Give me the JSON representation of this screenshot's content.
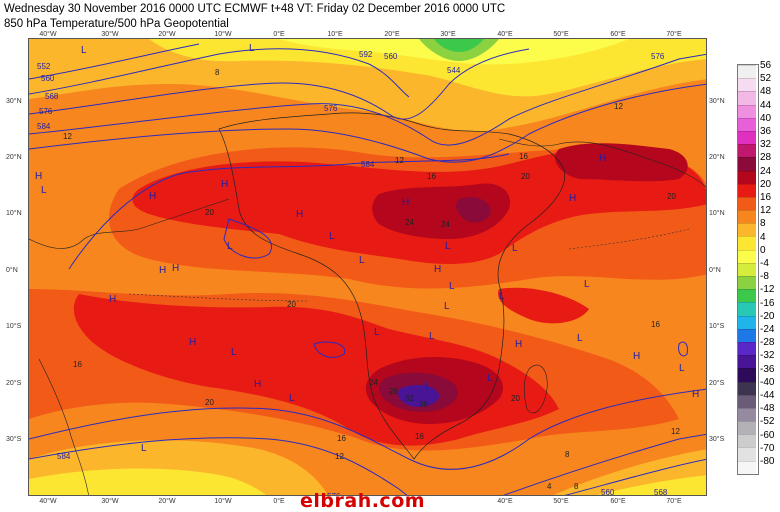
{
  "header": {
    "line1": "Wednesday 30 November 2016 0000 UTC  ECMWF  t+48  VT: Friday 02 December 2016 0000 UTC",
    "line2": "850 hPa Temperature/500 hPa Geopotential"
  },
  "axes": {
    "lon_labels": [
      "40°W",
      "30°W",
      "20°W",
      "10°W",
      "0°E",
      "10°E",
      "20°E",
      "30°E",
      "40°E",
      "50°E",
      "60°E",
      "70°E"
    ],
    "lat_labels": [
      "30°N",
      "20°N",
      "10°N",
      "0°N",
      "10°S",
      "20°S",
      "30°S"
    ]
  },
  "legend": {
    "items": [
      {
        "label": "56",
        "color": "#f0f0f0"
      },
      {
        "label": "52",
        "color": "#f6dcf0"
      },
      {
        "label": "48",
        "color": "#f2b8e6"
      },
      {
        "label": "44",
        "color": "#ee8fe0"
      },
      {
        "label": "40",
        "color": "#e860d8"
      },
      {
        "label": "36",
        "color": "#e030c0"
      },
      {
        "label": "32",
        "color": "#c0186e"
      },
      {
        "label": "28",
        "color": "#8a0a3a"
      },
      {
        "label": "24",
        "color": "#b4061c"
      },
      {
        "label": "20",
        "color": "#e81a14"
      },
      {
        "label": "16",
        "color": "#f25a18"
      },
      {
        "label": "12",
        "color": "#f8861e"
      },
      {
        "label": "8",
        "color": "#fcb62c"
      },
      {
        "label": "4",
        "color": "#fde632"
      },
      {
        "label": "0",
        "color": "#fcfc4a"
      },
      {
        "label": "-4",
        "color": "#d6ec3c"
      },
      {
        "label": "-8",
        "color": "#8cd240"
      },
      {
        "label": "-12",
        "color": "#3cc84a"
      },
      {
        "label": "-16",
        "color": "#28c8b4"
      },
      {
        "label": "-20",
        "color": "#20b4e8"
      },
      {
        "label": "-24",
        "color": "#1e78e6"
      },
      {
        "label": "-28",
        "color": "#5a28c8"
      },
      {
        "label": "-32",
        "color": "#4a1496"
      },
      {
        "label": "-36",
        "color": "#300a5a"
      },
      {
        "label": "-40",
        "color": "#3c3450"
      },
      {
        "label": "-44",
        "color": "#6a5c78"
      },
      {
        "label": "-48",
        "color": "#968aa0"
      },
      {
        "label": "-52",
        "color": "#b4b0b8"
      },
      {
        "label": "-60",
        "color": "#cccccc"
      },
      {
        "label": "-70",
        "color": "#e2e2e2"
      },
      {
        "label": "-80",
        "color": "#f6f6f6"
      }
    ]
  },
  "map": {
    "pressure_labels": [
      "552",
      "560",
      "568",
      "576",
      "584",
      "592",
      "544",
      "560",
      "576",
      "584",
      "584",
      "576",
      "568",
      "560",
      "576"
    ],
    "temp_labels": [
      "8",
      "12",
      "12",
      "16",
      "16",
      "20",
      "20",
      "20",
      "20",
      "24",
      "24",
      "24",
      "28",
      "32",
      "36",
      "12",
      "16",
      "12",
      "16",
      "20",
      "16",
      "12",
      "8",
      "4",
      "8",
      "16",
      "20"
    ],
    "high_markers": [
      "H",
      "H",
      "H",
      "H",
      "H",
      "H",
      "H",
      "H",
      "H",
      "H",
      "H",
      "H",
      "H",
      "H",
      "H",
      "H"
    ],
    "low_markers": [
      "L",
      "L",
      "L",
      "L",
      "L",
      "L",
      "L",
      "L",
      "L",
      "L",
      "L",
      "L",
      "L",
      "L",
      "L",
      "L",
      "L",
      "L",
      "L",
      "L",
      "L",
      "L"
    ]
  },
  "watermark": "elbrah.com"
}
